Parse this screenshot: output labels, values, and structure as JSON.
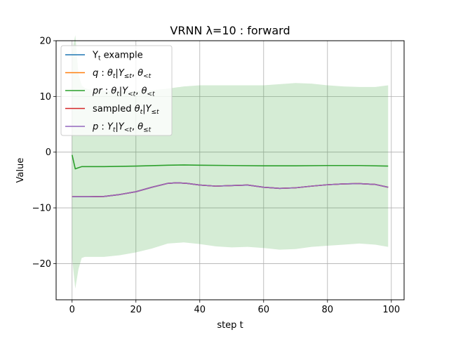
{
  "chart_data": {
    "type": "line",
    "title": "VRNN λ=10 : forward",
    "xlabel": "step t",
    "ylabel": "Value",
    "xlim": [
      -5,
      104
    ],
    "ylim": [
      -26.5,
      20
    ],
    "xticks": [
      0,
      20,
      40,
      60,
      80,
      100
    ],
    "yticks": [
      -20,
      -10,
      0,
      10,
      20
    ],
    "xtick_labels": [
      "0",
      "20",
      "40",
      "60",
      "80",
      "100"
    ],
    "ytick_labels": [
      "−20",
      "−10",
      "0",
      "10",
      "20"
    ],
    "grid": true,
    "legend_position": "top-left",
    "series": [
      {
        "name": "Y_t example",
        "label_parts": [
          {
            "t": "Y"
          },
          {
            "t": "t",
            "sub": true
          },
          {
            "t": " example"
          }
        ],
        "color": "#1f77b4",
        "x": [
          0,
          5,
          10,
          15,
          20,
          25,
          30,
          33,
          36,
          40,
          45,
          50,
          55,
          60,
          65,
          70,
          75,
          80,
          85,
          90,
          95,
          99
        ],
        "y": [
          -8.0,
          -8.0,
          -7.95,
          -7.6,
          -7.1,
          -6.3,
          -5.6,
          -5.5,
          -5.6,
          -5.9,
          -6.1,
          -6.0,
          -5.9,
          -6.3,
          -6.5,
          -6.4,
          -6.1,
          -5.85,
          -5.7,
          -5.65,
          -5.8,
          -6.3
        ]
      },
      {
        "name": "q : θt|Y≤t, θ<t",
        "label_parts": [
          {
            "t": "q",
            "it": true
          },
          {
            "t": " : "
          },
          {
            "t": "θ",
            "it": true
          },
          {
            "t": "t",
            "sub": true,
            "it": true
          },
          {
            "t": "|"
          },
          {
            "t": "Y",
            "it": true
          },
          {
            "t": "≤t",
            "sub": true,
            "it": true
          },
          {
            "t": ", "
          },
          {
            "t": "θ",
            "it": true
          },
          {
            "t": "<t",
            "sub": true,
            "it": true
          }
        ],
        "color": "#ff7f0e",
        "x": [
          0,
          5,
          10,
          15,
          20,
          25,
          30,
          33,
          36,
          40,
          45,
          50,
          55,
          60,
          65,
          70,
          75,
          80,
          85,
          90,
          95,
          99
        ],
        "y": [
          -8.0,
          -8.0,
          -7.95,
          -7.6,
          -7.1,
          -6.3,
          -5.6,
          -5.5,
          -5.6,
          -5.9,
          -6.1,
          -6.0,
          -5.9,
          -6.3,
          -6.5,
          -6.4,
          -6.1,
          -5.85,
          -5.7,
          -5.65,
          -5.8,
          -6.3
        ]
      },
      {
        "name": "pr : θt|Y<t, θ<t",
        "label_parts": [
          {
            "t": "pr",
            "it": true
          },
          {
            "t": " : "
          },
          {
            "t": "θ",
            "it": true
          },
          {
            "t": "t",
            "sub": true,
            "it": true
          },
          {
            "t": "|"
          },
          {
            "t": "Y",
            "it": true
          },
          {
            "t": "<t",
            "sub": true,
            "it": true
          },
          {
            "t": ", "
          },
          {
            "t": "θ",
            "it": true
          },
          {
            "t": "<t",
            "sub": true,
            "it": true
          }
        ],
        "color": "#2ca02c",
        "x": [
          0,
          1,
          2,
          3,
          5,
          10,
          20,
          30,
          35,
          40,
          50,
          60,
          70,
          80,
          90,
          99
        ],
        "y": [
          -0.5,
          -3.0,
          -2.8,
          -2.6,
          -2.6,
          -2.6,
          -2.5,
          -2.35,
          -2.3,
          -2.35,
          -2.4,
          -2.45,
          -2.45,
          -2.4,
          -2.4,
          -2.5
        ],
        "band_x": [
          0,
          1,
          2,
          3,
          4,
          5,
          10,
          15,
          20,
          25,
          30,
          35,
          40,
          45,
          50,
          55,
          60,
          65,
          70,
          75,
          80,
          85,
          90,
          95,
          99
        ],
        "band_upper": [
          18.0,
          21.0,
          14.0,
          12.0,
          11.5,
          11.3,
          11.0,
          11.0,
          11.0,
          11.1,
          11.4,
          11.8,
          12.0,
          12.0,
          12.0,
          12.0,
          12.0,
          12.2,
          12.4,
          12.3,
          12.0,
          11.8,
          11.7,
          11.7,
          12.0
        ],
        "band_lower": [
          -19.0,
          -24.5,
          -21.0,
          -19.0,
          -18.8,
          -18.8,
          -18.8,
          -18.5,
          -18.0,
          -17.3,
          -16.4,
          -16.2,
          -16.5,
          -16.9,
          -17.1,
          -17.0,
          -17.2,
          -17.5,
          -17.4,
          -17.0,
          -16.8,
          -16.6,
          -16.4,
          -16.6,
          -17.0
        ]
      },
      {
        "name": "sampled θt|Y≤t",
        "label_parts": [
          {
            "t": "sampled "
          },
          {
            "t": "θ",
            "it": true
          },
          {
            "t": "t",
            "sub": true,
            "it": true
          },
          {
            "t": "|"
          },
          {
            "t": "Y",
            "it": true
          },
          {
            "t": "≤t",
            "sub": true,
            "it": true
          }
        ],
        "color": "#d62728",
        "x": [
          0,
          5,
          10,
          15,
          20,
          25,
          30,
          33,
          36,
          40,
          45,
          50,
          55,
          60,
          65,
          70,
          75,
          80,
          85,
          90,
          95,
          99
        ],
        "y": [
          -8.0,
          -8.0,
          -7.95,
          -7.6,
          -7.1,
          -6.3,
          -5.6,
          -5.5,
          -5.6,
          -5.9,
          -6.1,
          -6.0,
          -5.9,
          -6.3,
          -6.5,
          -6.4,
          -6.1,
          -5.85,
          -5.7,
          -5.65,
          -5.8,
          -6.3
        ]
      },
      {
        "name": "p : Yt|Y<t, θ≤t",
        "label_parts": [
          {
            "t": "p",
            "it": true
          },
          {
            "t": " : "
          },
          {
            "t": "Y",
            "it": true
          },
          {
            "t": "t",
            "sub": true,
            "it": true
          },
          {
            "t": "|"
          },
          {
            "t": "Y",
            "it": true
          },
          {
            "t": "<t",
            "sub": true,
            "it": true
          },
          {
            "t": ", "
          },
          {
            "t": "θ",
            "it": true
          },
          {
            "t": "≤t",
            "sub": true,
            "it": true
          }
        ],
        "color": "#9467bd",
        "x": [
          0,
          5,
          10,
          15,
          20,
          25,
          30,
          33,
          36,
          40,
          45,
          50,
          55,
          60,
          65,
          70,
          75,
          80,
          85,
          90,
          95,
          99
        ],
        "y": [
          -8.0,
          -8.0,
          -7.95,
          -7.6,
          -7.1,
          -6.3,
          -5.6,
          -5.5,
          -5.6,
          -5.9,
          -6.1,
          -6.0,
          -5.9,
          -6.3,
          -6.5,
          -6.4,
          -6.1,
          -5.85,
          -5.7,
          -5.65,
          -5.8,
          -6.3
        ]
      }
    ]
  }
}
